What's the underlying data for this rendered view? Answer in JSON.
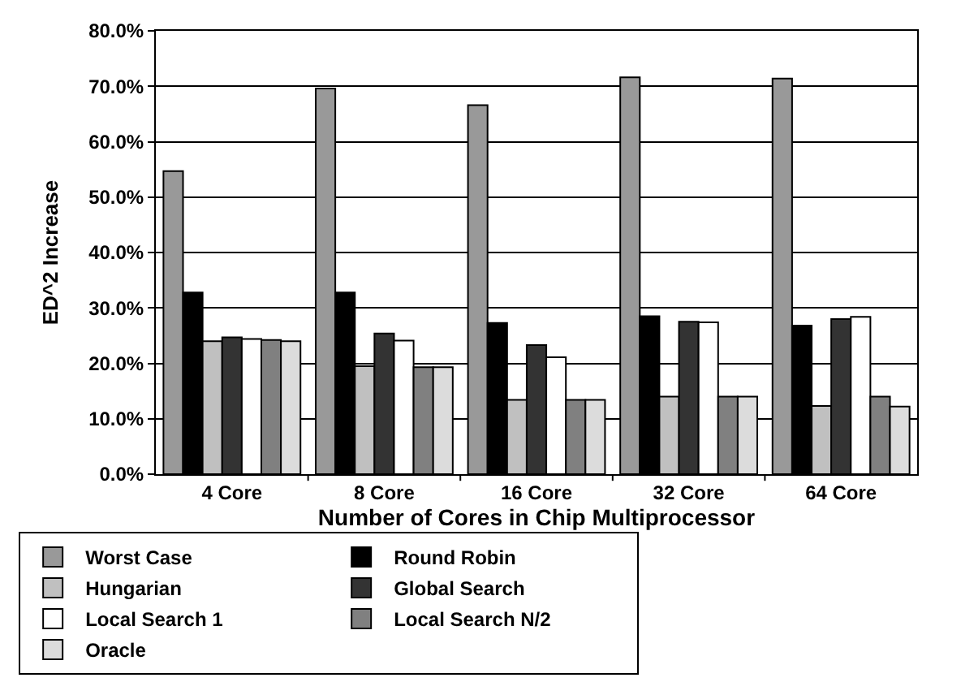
{
  "chart_data": {
    "type": "bar",
    "xlabel": "Number of Cores in Chip Multiprocessor",
    "ylabel": "ED^2 Increase",
    "categories": [
      "4 Core",
      "8 Core",
      "16 Core",
      "32 Core",
      "64 Core"
    ],
    "series": [
      {
        "name": "Worst Case",
        "color": "#999999",
        "values": [
          54.7,
          69.6,
          66.6,
          71.6,
          71.4
        ]
      },
      {
        "name": "Round Robin",
        "color": "#000000",
        "values": [
          32.8,
          32.8,
          27.3,
          28.5,
          26.8
        ]
      },
      {
        "name": "Hungarian",
        "color": "#c0c0c0",
        "values": [
          24.0,
          19.5,
          13.4,
          14.0,
          12.3
        ]
      },
      {
        "name": "Global Search",
        "color": "#333333",
        "values": [
          24.7,
          25.4,
          23.3,
          27.5,
          28.0
        ]
      },
      {
        "name": "Local Search 1",
        "color": "#ffffff",
        "values": [
          24.4,
          24.1,
          21.1,
          27.4,
          28.4
        ]
      },
      {
        "name": "Local Search N/2",
        "color": "#808080",
        "values": [
          24.2,
          19.3,
          13.4,
          14.0,
          14.0
        ]
      },
      {
        "name": "Oracle",
        "color": "#dcdcdc",
        "values": [
          24.0,
          19.3,
          13.4,
          14.0,
          12.2
        ]
      }
    ],
    "ylim": [
      0,
      80
    ],
    "yticks": [
      {
        "value": 0,
        "label": "0.0%"
      },
      {
        "value": 10,
        "label": "10.0%"
      },
      {
        "value": 20,
        "label": "20.0%"
      },
      {
        "value": 30,
        "label": "30.0%"
      },
      {
        "value": 40,
        "label": "40.0%"
      },
      {
        "value": 50,
        "label": "50.0%"
      },
      {
        "value": 60,
        "label": "60.0%"
      },
      {
        "value": 70,
        "label": "70.0%"
      },
      {
        "value": 80,
        "label": "80.0%"
      }
    ],
    "grid": "y",
    "legend": "bottom"
  }
}
